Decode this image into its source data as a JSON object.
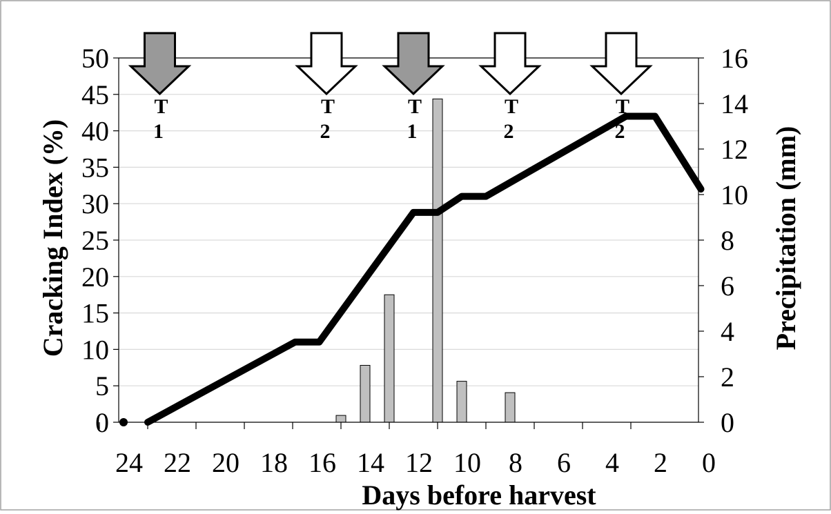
{
  "chart_data": {
    "type": "bar",
    "title": "",
    "xlabel": "Days before harvest",
    "ylabel_left": "Cracking Index (%)",
    "ylabel_right": "Precipitation  (mm)",
    "x_axis": {
      "range": [
        24,
        0
      ],
      "reversed": true,
      "ticks": [
        24,
        22,
        20,
        18,
        16,
        14,
        12,
        10,
        8,
        6,
        4,
        2,
        0
      ]
    },
    "y_left": {
      "range": [
        0,
        50
      ],
      "ticks": [
        0,
        5,
        10,
        15,
        20,
        25,
        30,
        35,
        40,
        45,
        50
      ]
    },
    "y_right": {
      "range": [
        0,
        16
      ],
      "ticks": [
        0,
        2,
        4,
        6,
        8,
        10,
        12,
        14,
        16
      ]
    },
    "grid": true,
    "series": [
      {
        "type": "line",
        "axis": "left",
        "x": [
          22.8,
          16.7,
          15.7,
          11.8,
          10.8,
          9.8,
          8.8,
          3.0,
          1.8,
          -0.1
        ],
        "values": [
          0,
          11,
          11,
          28.8,
          28.8,
          31,
          31,
          42,
          42,
          32
        ]
      },
      {
        "type": "bar",
        "axis": "right",
        "x": [
          14.8,
          13.8,
          12.8,
          10.8,
          9.8,
          7.8
        ],
        "values": [
          0.3,
          2.5,
          5.6,
          14.2,
          1.8,
          1.3
        ]
      },
      {
        "type": "point",
        "axis": "left",
        "x": [
          23.8
        ],
        "values": [
          0
        ]
      }
    ],
    "annotations": [
      {
        "type": "arrow",
        "fill": "#999999",
        "x": 22.3,
        "label_line1": "T",
        "label_line2": "1"
      },
      {
        "type": "arrow",
        "fill": "#ffffff",
        "x": 15.4,
        "label_line1": "T",
        "label_line2": "2"
      },
      {
        "type": "arrow",
        "fill": "#999999",
        "x": 11.8,
        "label_line1": "T",
        "label_line2": "1"
      },
      {
        "type": "arrow",
        "fill": "#ffffff",
        "x": 7.8,
        "label_line1": "T",
        "label_line2": "2"
      },
      {
        "type": "arrow",
        "fill": "#ffffff",
        "x": 3.2,
        "label_line1": "T",
        "label_line2": "2"
      }
    ],
    "colors": {
      "line": "#000000",
      "bar_fill": "#c0c0c0",
      "bar_stroke": "#000000",
      "grid": "#d9d9d9",
      "arrow_stroke": "#000000"
    }
  }
}
